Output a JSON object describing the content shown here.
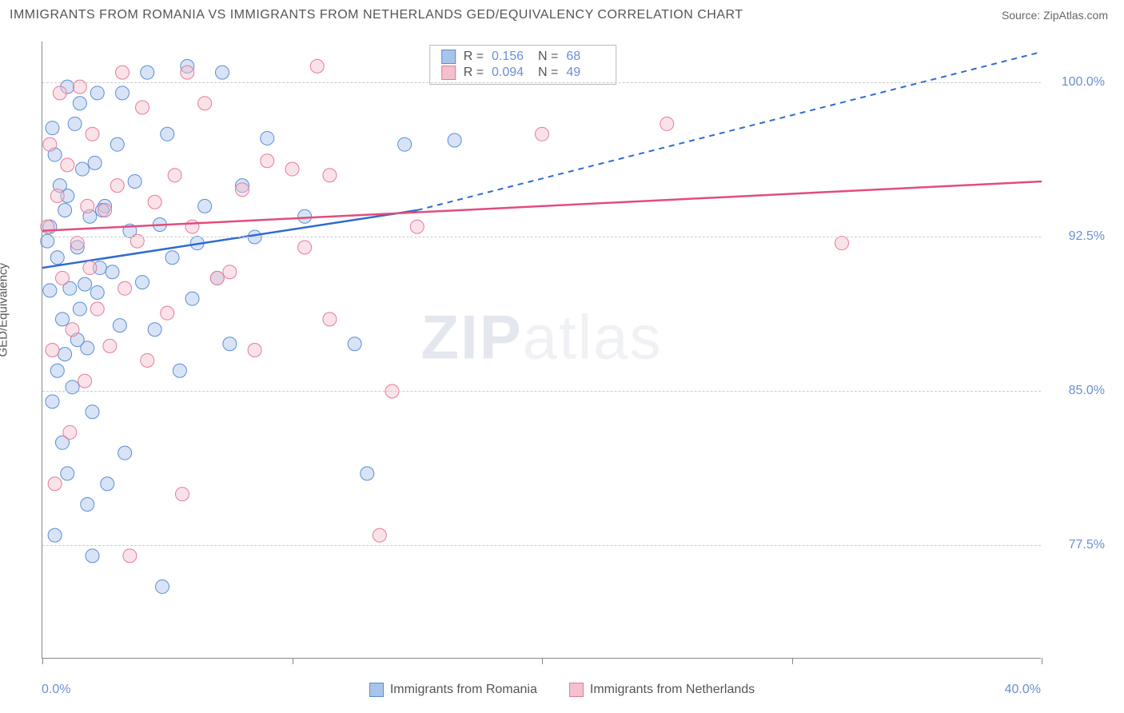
{
  "title": "IMMIGRANTS FROM ROMANIA VS IMMIGRANTS FROM NETHERLANDS GED/EQUIVALENCY CORRELATION CHART",
  "source": "Source: ZipAtlas.com",
  "y_axis_label": "GED/Equivalency",
  "watermark_bold": "ZIP",
  "watermark_light": "atlas",
  "chart": {
    "type": "scatter",
    "xlim": [
      0,
      40
    ],
    "ylim": [
      72,
      102
    ],
    "x_ticks": [
      0,
      10,
      20,
      30,
      40
    ],
    "x_tick_labels": [
      "0.0%",
      "",
      "",
      "",
      "40.0%"
    ],
    "y_ticks": [
      77.5,
      85.0,
      92.5,
      100.0
    ],
    "y_tick_labels": [
      "77.5%",
      "85.0%",
      "92.5%",
      "100.0%"
    ],
    "background_color": "#ffffff",
    "grid_color": "#cccccc",
    "axis_color": "#888888",
    "tick_label_color": "#6b8fd4",
    "marker_radius": 8.5,
    "marker_opacity": 0.45,
    "series": [
      {
        "name": "Immigrants from Romania",
        "color_fill": "#a9c4ea",
        "color_stroke": "#5b8cd6",
        "R": "0.156",
        "N": "68",
        "trend": {
          "x1": 0,
          "y1": 91.0,
          "x2": 15,
          "y2": 93.8,
          "x_dash_to": 40,
          "y_dash_to": 101.5,
          "color": "#2f6bd0",
          "width": 2.5
        },
        "points": [
          [
            0.2,
            92.3
          ],
          [
            0.3,
            93.0
          ],
          [
            0.5,
            96.5
          ],
          [
            0.6,
            91.5
          ],
          [
            0.8,
            88.5
          ],
          [
            0.9,
            86.8
          ],
          [
            1.0,
            94.5
          ],
          [
            1.1,
            90.0
          ],
          [
            1.2,
            85.2
          ],
          [
            1.3,
            98.0
          ],
          [
            1.4,
            92.0
          ],
          [
            1.5,
            89.0
          ],
          [
            1.6,
            95.8
          ],
          [
            1.7,
            90.2
          ],
          [
            1.8,
            87.1
          ],
          [
            1.9,
            93.5
          ],
          [
            2.0,
            84.0
          ],
          [
            2.1,
            96.1
          ],
          [
            2.2,
            89.8
          ],
          [
            2.3,
            91.0
          ],
          [
            2.5,
            94.0
          ],
          [
            2.6,
            80.5
          ],
          [
            2.8,
            90.8
          ],
          [
            3.0,
            97.0
          ],
          [
            3.1,
            88.2
          ],
          [
            3.3,
            82.0
          ],
          [
            3.5,
            92.8
          ],
          [
            3.7,
            95.2
          ],
          [
            4.0,
            90.3
          ],
          [
            4.2,
            100.5
          ],
          [
            4.5,
            88.0
          ],
          [
            4.7,
            93.1
          ],
          [
            4.8,
            75.5
          ],
          [
            5.0,
            97.5
          ],
          [
            5.2,
            91.5
          ],
          [
            5.5,
            86.0
          ],
          [
            5.8,
            100.8
          ],
          [
            6.0,
            89.5
          ],
          [
            6.5,
            94.0
          ],
          [
            7.0,
            90.5
          ],
          [
            7.2,
            100.5
          ],
          [
            7.5,
            87.3
          ],
          [
            8.0,
            95.0
          ],
          [
            8.5,
            92.5
          ],
          [
            9.0,
            97.3
          ],
          [
            10.5,
            93.5
          ],
          [
            12.5,
            87.3
          ],
          [
            13.0,
            81.0
          ],
          [
            14.5,
            97.0
          ],
          [
            16.5,
            97.2
          ],
          [
            1.0,
            99.8
          ],
          [
            2.2,
            99.5
          ],
          [
            0.4,
            97.8
          ],
          [
            0.7,
            95.0
          ],
          [
            1.5,
            99.0
          ],
          [
            3.2,
            99.5
          ],
          [
            0.4,
            84.5
          ],
          [
            0.8,
            82.5
          ],
          [
            1.0,
            81.0
          ],
          [
            1.8,
            79.5
          ],
          [
            0.5,
            78.0
          ],
          [
            2.0,
            77.0
          ],
          [
            0.3,
            89.9
          ],
          [
            0.9,
            93.8
          ],
          [
            1.4,
            87.5
          ],
          [
            0.6,
            86.0
          ],
          [
            6.2,
            92.2
          ],
          [
            2.4,
            93.8
          ]
        ]
      },
      {
        "name": "Immigrants from Netherlands",
        "color_fill": "#f5c0cd",
        "color_stroke": "#e77a9a",
        "R": "0.094",
        "N": "49",
        "trend": {
          "x1": 0,
          "y1": 92.8,
          "x2": 40,
          "y2": 95.2,
          "color": "#e24d7a",
          "width": 2.5
        },
        "points": [
          [
            0.2,
            93.0
          ],
          [
            0.4,
            87.0
          ],
          [
            0.6,
            94.5
          ],
          [
            0.8,
            90.5
          ],
          [
            1.0,
            96.0
          ],
          [
            1.2,
            88.0
          ],
          [
            1.4,
            92.2
          ],
          [
            1.5,
            99.8
          ],
          [
            1.7,
            85.5
          ],
          [
            1.9,
            91.0
          ],
          [
            2.0,
            97.5
          ],
          [
            2.2,
            89.0
          ],
          [
            2.5,
            93.8
          ],
          [
            2.7,
            87.2
          ],
          [
            3.0,
            95.0
          ],
          [
            3.3,
            90.0
          ],
          [
            3.5,
            77.0
          ],
          [
            3.8,
            92.3
          ],
          [
            4.0,
            98.8
          ],
          [
            4.2,
            86.5
          ],
          [
            4.5,
            94.2
          ],
          [
            5.0,
            88.8
          ],
          [
            5.3,
            95.5
          ],
          [
            5.6,
            80.0
          ],
          [
            6.0,
            93.0
          ],
          [
            6.5,
            99.0
          ],
          [
            7.0,
            90.5
          ],
          [
            7.5,
            90.8
          ],
          [
            8.0,
            94.8
          ],
          [
            8.5,
            87.0
          ],
          [
            9.0,
            96.2
          ],
          [
            10.0,
            95.8
          ],
          [
            10.5,
            92.0
          ],
          [
            11.0,
            100.8
          ],
          [
            11.5,
            95.5
          ],
          [
            13.5,
            78.0
          ],
          [
            14.0,
            85.0
          ],
          [
            15.0,
            93.0
          ],
          [
            20.0,
            97.5
          ],
          [
            11.5,
            88.5
          ],
          [
            5.8,
            100.5
          ],
          [
            25.0,
            98.0
          ],
          [
            32.0,
            92.2
          ],
          [
            0.5,
            80.5
          ],
          [
            1.1,
            83.0
          ],
          [
            0.3,
            97.0
          ],
          [
            0.7,
            99.5
          ],
          [
            1.8,
            94.0
          ],
          [
            3.2,
            100.5
          ]
        ]
      }
    ]
  },
  "bottom_legend": [
    {
      "label": "Immigrants from Romania",
      "fill": "#a9c4ea",
      "stroke": "#5b8cd6"
    },
    {
      "label": "Immigrants from Netherlands",
      "fill": "#f5c0cd",
      "stroke": "#e77a9a"
    }
  ]
}
